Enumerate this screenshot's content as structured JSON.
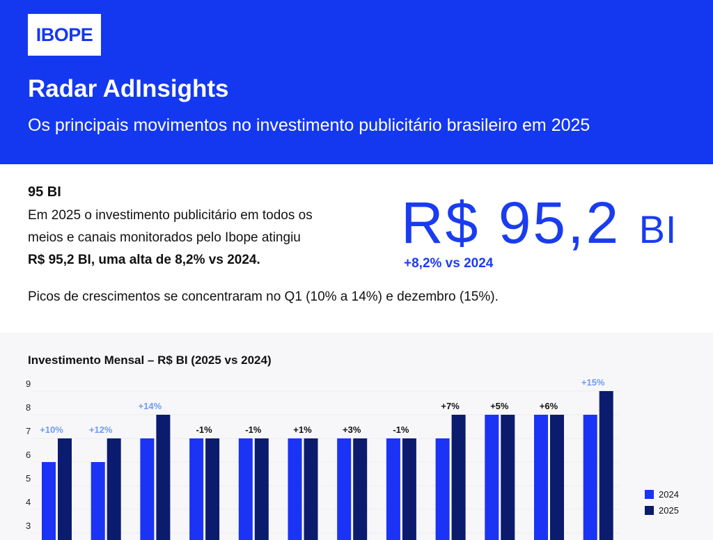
{
  "header": {
    "logo": "IBOPE",
    "title": "Radar AdInsights",
    "subtitle": "Os principais movimentos no investimento publicitário brasileiro em 2025"
  },
  "summary": {
    "heading": "95 BI",
    "body_line1": "Em 2025 o investimento publicitário em todos os",
    "body_line2": "meios e canais monitorados pelo Ibope atingiu",
    "body_bold": "R$ 95,2 BI, uma alta de 8,2% vs 2024.",
    "big_value": "R$ 95,2",
    "big_unit": "BI",
    "big_delta": "+8,2% vs 2024",
    "note": "Picos de crescimentos se concentraram no Q1 (10% a 14%) e dezembro (15%)."
  },
  "colors": {
    "header": "#1438f0",
    "series_2024": "#1a33f5",
    "series_2025": "#0b1c6e",
    "highlight_label": "#6f9bf0"
  },
  "chart_data": {
    "type": "bar",
    "title": "Investimento Mensal – R$ BI (2025 vs 2024)",
    "yticks": [
      3,
      4,
      5,
      6,
      7,
      8,
      9
    ],
    "ylim": [
      0,
      9
    ],
    "grid": true,
    "legend_position": "right",
    "series": [
      {
        "name": "2024",
        "values": [
          6,
          6,
          7,
          7,
          7,
          7,
          7,
          7,
          7,
          8,
          8,
          8
        ]
      },
      {
        "name": "2025",
        "values": [
          7,
          7,
          8,
          7,
          7,
          7,
          7,
          7,
          8,
          8,
          8,
          9
        ]
      }
    ],
    "labels": [
      "+10%",
      "+12%",
      "+14%",
      "-1%",
      "-1%",
      "+1%",
      "+3%",
      "-1%",
      "+7%",
      "+5%",
      "+6%",
      "+15%"
    ],
    "highlighted": [
      true,
      true,
      true,
      false,
      false,
      false,
      false,
      false,
      false,
      false,
      false,
      true
    ]
  }
}
